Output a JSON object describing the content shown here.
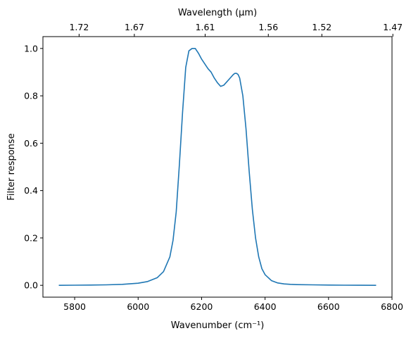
{
  "chart_data": {
    "type": "line",
    "title": "",
    "xlabel": "Wavenumber (cm⁻¹)",
    "ylabel": "Filter response",
    "x2label": "Wavelength (μm)",
    "xlim": [
      5700,
      6800
    ],
    "ylim": [
      -0.05,
      1.05
    ],
    "xticks": [
      5800,
      6000,
      6200,
      6400,
      6600,
      6800
    ],
    "yticks": [
      0.0,
      0.2,
      0.4,
      0.6,
      0.8,
      1.0
    ],
    "xtick_labels": [
      "5800",
      "6000",
      "6200",
      "6400",
      "6600",
      "6800"
    ],
    "ytick_labels": [
      "0.0",
      "0.2",
      "0.4",
      "0.6",
      "0.8",
      "1.0"
    ],
    "x2ticks": [
      1.72,
      1.67,
      1.61,
      1.56,
      1.52,
      1.47
    ],
    "x2tick_labels": [
      "1.72",
      "1.67",
      "1.61",
      "1.56",
      "1.52",
      "1.47"
    ],
    "grid": false,
    "color": "#1f77b4",
    "series": [
      {
        "x": [
          5750,
          5800,
          5850,
          5900,
          5950,
          6000,
          6030,
          6060,
          6080,
          6100,
          6110,
          6120,
          6130,
          6140,
          6150,
          6160,
          6170,
          6175,
          6180,
          6185,
          6190,
          6200,
          6210,
          6220,
          6230,
          6240,
          6250,
          6260,
          6270,
          6280,
          6290,
          6300,
          6305,
          6310,
          6315,
          6320,
          6330,
          6340,
          6350,
          6360,
          6370,
          6380,
          6390,
          6400,
          6420,
          6440,
          6460,
          6480,
          6500,
          6550,
          6600,
          6650,
          6700,
          6750
        ],
        "values": [
          0.0,
          0.0005,
          0.001,
          0.002,
          0.004,
          0.009,
          0.016,
          0.032,
          0.058,
          0.12,
          0.19,
          0.31,
          0.51,
          0.73,
          0.92,
          0.99,
          1.0,
          1.0,
          1.0,
          0.99,
          0.98,
          0.955,
          0.935,
          0.915,
          0.9,
          0.875,
          0.855,
          0.84,
          0.845,
          0.86,
          0.875,
          0.89,
          0.895,
          0.895,
          0.89,
          0.875,
          0.8,
          0.66,
          0.48,
          0.32,
          0.2,
          0.12,
          0.07,
          0.045,
          0.02,
          0.01,
          0.006,
          0.004,
          0.003,
          0.002,
          0.001,
          0.0005,
          0.0002,
          0.0
        ]
      }
    ]
  }
}
